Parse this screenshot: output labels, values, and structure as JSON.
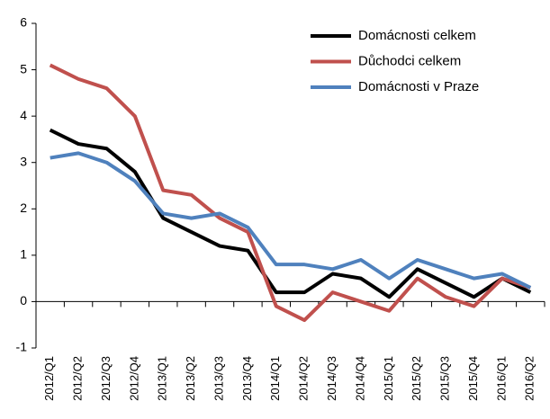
{
  "chart_data": {
    "type": "line",
    "categories": [
      "2012/Q1",
      "2012/Q2",
      "2012/Q3",
      "2012/Q4",
      "2013/Q1",
      "2013/Q2",
      "2013/Q3",
      "2013/Q4",
      "2014/Q1",
      "2014/Q2",
      "2014/Q3",
      "2014/Q4",
      "2015/Q1",
      "2015/Q2",
      "2015/Q3",
      "2015/Q4",
      "2016/Q1",
      "2016/Q2"
    ],
    "series": [
      {
        "name": "Domácnosti celkem",
        "color": "#000000",
        "values": [
          3.7,
          3.4,
          3.3,
          2.8,
          1.8,
          1.5,
          1.2,
          1.1,
          0.2,
          0.2,
          0.6,
          0.5,
          0.1,
          0.7,
          0.4,
          0.1,
          0.5,
          0.2
        ]
      },
      {
        "name": "Důchodci celkem",
        "color": "#c0504d",
        "values": [
          5.1,
          4.8,
          4.6,
          4.0,
          2.4,
          2.3,
          1.8,
          1.5,
          -0.1,
          -0.4,
          0.2,
          0.0,
          -0.2,
          0.5,
          0.1,
          -0.1,
          0.5,
          0.3
        ]
      },
      {
        "name": "Domácnosti v Praze",
        "color": "#4f81bd",
        "values": [
          3.1,
          3.2,
          3.0,
          2.6,
          1.9,
          1.8,
          1.9,
          1.6,
          0.8,
          0.8,
          0.7,
          0.9,
          0.5,
          0.9,
          0.7,
          0.5,
          0.6,
          0.3
        ]
      }
    ],
    "ylim": [
      -1,
      6
    ],
    "yticks": [
      -1,
      0,
      1,
      2,
      3,
      4,
      5,
      6
    ],
    "legend": "top-right"
  }
}
